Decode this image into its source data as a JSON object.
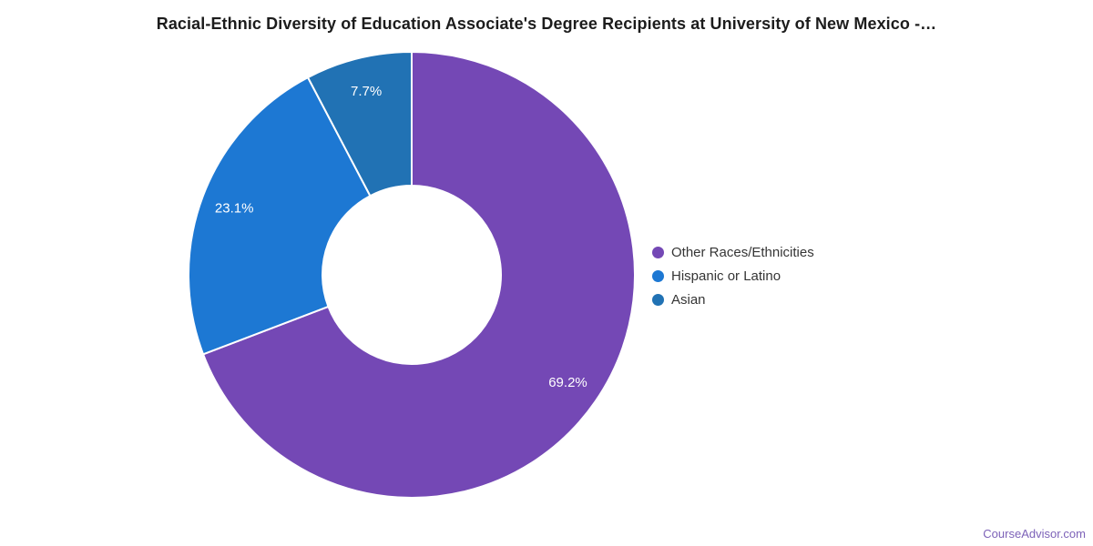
{
  "header": {
    "title": "Racial-Ethnic Diversity of Education Associate's Degree Recipients at University of New Mexico -…"
  },
  "footer": {
    "watermark": "CourseAdvisor.com",
    "watermark_color": "#7d62b8"
  },
  "chart_data": {
    "type": "pie",
    "subtype": "donut",
    "title": "Racial-Ethnic Diversity of Education Associate's Degree Recipients at University of New Mexico -…",
    "categories": [
      "Other Races/Ethnicities",
      "Hispanic or Latino",
      "Asian"
    ],
    "values": [
      69.2,
      23.1,
      7.7
    ],
    "labels": [
      "69.2%",
      "23.1%",
      "7.7%"
    ],
    "colors": [
      "#7448b5",
      "#1d78d3",
      "#2172b4"
    ],
    "slice_border_color": "#ffffff",
    "label_color": "#ffffff",
    "start_angle_deg": 0,
    "direction": "clockwise",
    "legend_position": "right",
    "legend_marker": "circle"
  }
}
